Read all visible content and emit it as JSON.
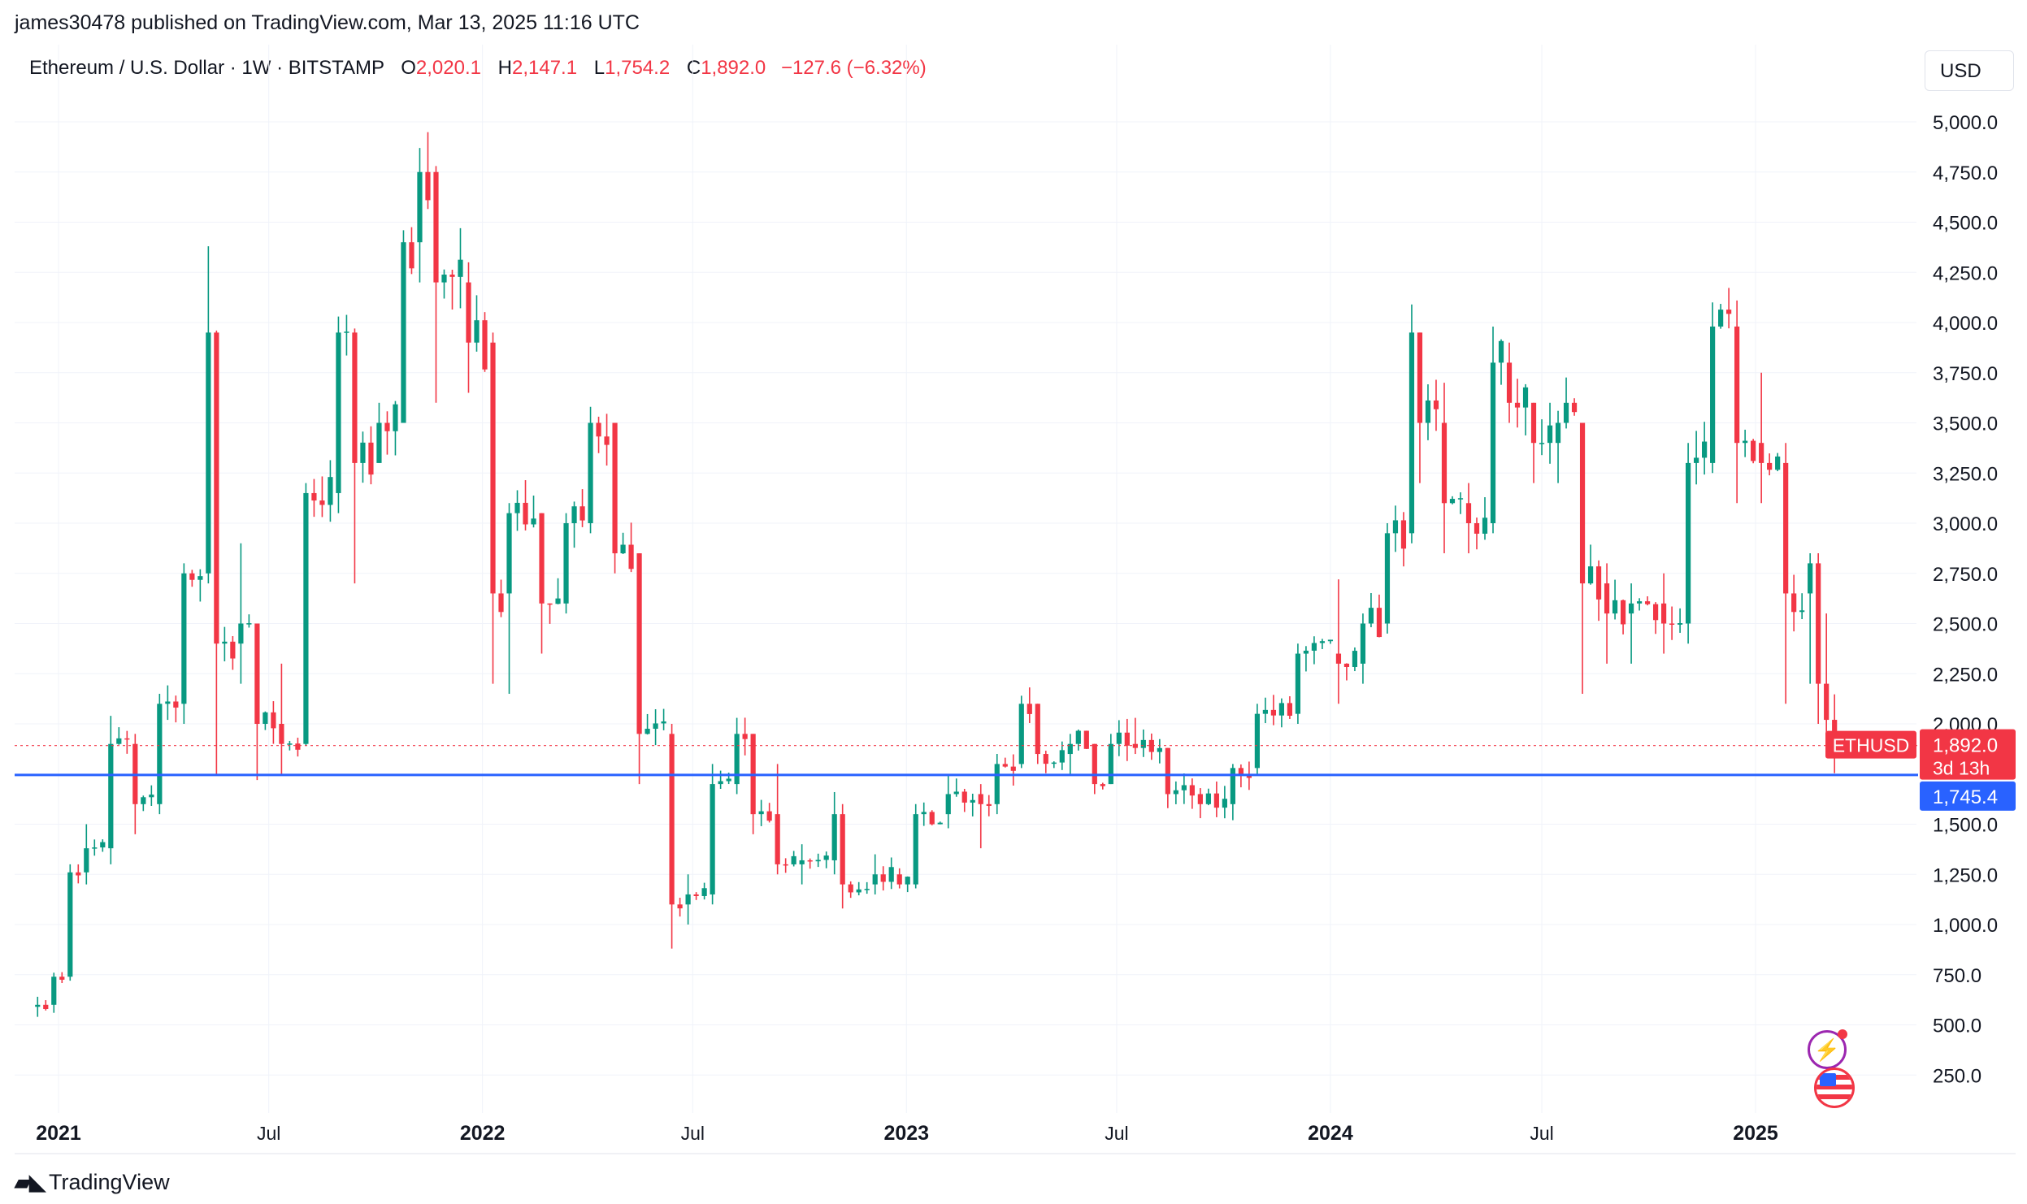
{
  "publisher_line": "james30478 published on TradingView.com, Mar 13, 2025 11:16 UTC",
  "legend": {
    "symbol": "Ethereum / U.S. Dollar · 1W · BITSTAMP",
    "open_label": "O",
    "open": "2,020.1",
    "high_label": "H",
    "high": "2,147.1",
    "low_label": "L",
    "low": "1,754.2",
    "close_label": "C",
    "close": "1,892.0",
    "change": "−127.6 (−6.32%)"
  },
  "currency": "USD",
  "footer_brand": "TradingView",
  "price_tag": {
    "ticker": "ETHUSD",
    "price": "1,892.0",
    "countdown": "3d 13h"
  },
  "level_tag": {
    "price": "1,745.4"
  },
  "colors": {
    "up": "#089981",
    "down": "#f23645",
    "level_line": "#2962ff",
    "grid": "#f0f3fa"
  },
  "chart_data": {
    "type": "candlestick",
    "interval": "1W",
    "y_ticks": [
      250,
      500,
      750,
      1000,
      1250,
      1500,
      2000,
      2250,
      2500,
      2750,
      3000,
      3250,
      3500,
      3750,
      4000,
      4250,
      4500,
      4750,
      5000
    ],
    "y_tick_labels": [
      "250.0",
      "500.0",
      "750.0",
      "1,000.0",
      "1,250.0",
      "1,500.0",
      "2,000.0",
      "2,250.0",
      "2,500.0",
      "2,750.0",
      "3,000.0",
      "3,250.0",
      "3,500.0",
      "3,750.0",
      "4,000.0",
      "4,250.0",
      "4,500.0",
      "4,750.0",
      "5,000.0"
    ],
    "x_ticks": [
      {
        "date": "2021-01-01",
        "label": "2021",
        "major": true
      },
      {
        "date": "2021-07-01",
        "label": "Jul",
        "major": false
      },
      {
        "date": "2022-01-01",
        "label": "2022",
        "major": true
      },
      {
        "date": "2022-07-01",
        "label": "Jul",
        "major": false
      },
      {
        "date": "2023-01-01",
        "label": "2023",
        "major": true
      },
      {
        "date": "2023-07-01",
        "label": "Jul",
        "major": false
      },
      {
        "date": "2024-01-01",
        "label": "2024",
        "major": true
      },
      {
        "date": "2024-07-01",
        "label": "Jul",
        "major": false
      },
      {
        "date": "2025-01-01",
        "label": "2025",
        "major": true
      }
    ],
    "horizontal_level": 1745.4,
    "last_close": 1892.0,
    "ohlc_anchors": [
      {
        "date": "2020-12-14",
        "open": 590,
        "high": 640,
        "low": 540,
        "close": 600
      },
      {
        "date": "2020-12-28",
        "open": 600,
        "high": 760,
        "low": 560,
        "close": 740
      },
      {
        "date": "2021-01-11",
        "open": 740,
        "high": 1300,
        "low": 720,
        "close": 1260
      },
      {
        "date": "2021-01-25",
        "open": 1260,
        "high": 1500,
        "low": 1200,
        "close": 1380
      },
      {
        "date": "2021-02-15",
        "open": 1380,
        "high": 2040,
        "low": 1300,
        "close": 1900
      },
      {
        "date": "2021-03-08",
        "open": 1900,
        "high": 1950,
        "low": 1450,
        "close": 1600
      },
      {
        "date": "2021-03-29",
        "open": 1600,
        "high": 2150,
        "low": 1550,
        "close": 2100
      },
      {
        "date": "2021-04-19",
        "open": 2100,
        "high": 2800,
        "low": 2000,
        "close": 2750
      },
      {
        "date": "2021-05-10",
        "open": 2750,
        "high": 4380,
        "low": 2700,
        "close": 3950
      },
      {
        "date": "2021-05-17",
        "open": 3950,
        "high": 3960,
        "low": 1750,
        "close": 2400
      },
      {
        "date": "2021-06-07",
        "open": 2400,
        "high": 2900,
        "low": 2200,
        "close": 2500
      },
      {
        "date": "2021-06-21",
        "open": 2500,
        "high": 2500,
        "low": 1720,
        "close": 2000
      },
      {
        "date": "2021-07-12",
        "open": 2000,
        "high": 2300,
        "low": 1750,
        "close": 1900
      },
      {
        "date": "2021-08-02",
        "open": 1900,
        "high": 3200,
        "low": 1890,
        "close": 3150
      },
      {
        "date": "2021-08-30",
        "open": 3150,
        "high": 4030,
        "low": 3050,
        "close": 3950
      },
      {
        "date": "2021-09-13",
        "open": 3950,
        "high": 3970,
        "low": 2700,
        "close": 3300
      },
      {
        "date": "2021-10-04",
        "open": 3300,
        "high": 3600,
        "low": 3300,
        "close": 3500
      },
      {
        "date": "2021-10-25",
        "open": 3500,
        "high": 4460,
        "low": 3500,
        "close": 4400
      },
      {
        "date": "2021-11-08",
        "open": 4400,
        "high": 4870,
        "low": 4200,
        "close": 4750
      },
      {
        "date": "2021-11-22",
        "open": 4750,
        "high": 4780,
        "low": 3600,
        "close": 4200
      },
      {
        "date": "2021-12-20",
        "open": 4200,
        "high": 4300,
        "low": 3650,
        "close": 3900
      },
      {
        "date": "2022-01-10",
        "open": 3900,
        "high": 3950,
        "low": 2200,
        "close": 2650
      },
      {
        "date": "2022-01-24",
        "open": 2650,
        "high": 3100,
        "low": 2150,
        "close": 3050
      },
      {
        "date": "2022-02-21",
        "open": 3050,
        "high": 3050,
        "low": 2350,
        "close": 2600
      },
      {
        "date": "2022-03-14",
        "open": 2600,
        "high": 3050,
        "low": 2550,
        "close": 3000
      },
      {
        "date": "2022-04-04",
        "open": 3000,
        "high": 3580,
        "low": 2950,
        "close": 3500
      },
      {
        "date": "2022-04-25",
        "open": 3500,
        "high": 3500,
        "low": 2750,
        "close": 2850
      },
      {
        "date": "2022-05-16",
        "open": 2850,
        "high": 2850,
        "low": 1700,
        "close": 1950
      },
      {
        "date": "2022-06-13",
        "open": 1950,
        "high": 2000,
        "low": 880,
        "close": 1100
      },
      {
        "date": "2022-06-27",
        "open": 1100,
        "high": 1250,
        "low": 1000,
        "close": 1150
      },
      {
        "date": "2022-07-18",
        "open": 1150,
        "high": 1800,
        "low": 1100,
        "close": 1700
      },
      {
        "date": "2022-08-08",
        "open": 1700,
        "high": 2030,
        "low": 1650,
        "close": 1950
      },
      {
        "date": "2022-08-22",
        "open": 1950,
        "high": 1950,
        "low": 1450,
        "close": 1550
      },
      {
        "date": "2022-09-12",
        "open": 1550,
        "high": 1800,
        "low": 1250,
        "close": 1300
      },
      {
        "date": "2022-10-03",
        "open": 1300,
        "high": 1400,
        "low": 1200,
        "close": 1320
      },
      {
        "date": "2022-10-31",
        "open": 1320,
        "high": 1660,
        "low": 1250,
        "close": 1550
      },
      {
        "date": "2022-11-07",
        "open": 1550,
        "high": 1600,
        "low": 1080,
        "close": 1200
      },
      {
        "date": "2022-12-05",
        "open": 1200,
        "high": 1350,
        "low": 1150,
        "close": 1250
      },
      {
        "date": "2022-12-26",
        "open": 1250,
        "high": 1280,
        "low": 1180,
        "close": 1200
      },
      {
        "date": "2023-01-09",
        "open": 1200,
        "high": 1600,
        "low": 1180,
        "close": 1550
      },
      {
        "date": "2023-02-06",
        "open": 1550,
        "high": 1750,
        "low": 1480,
        "close": 1650
      },
      {
        "date": "2023-03-06",
        "open": 1650,
        "high": 1700,
        "low": 1380,
        "close": 1600
      },
      {
        "date": "2023-03-20",
        "open": 1600,
        "high": 1850,
        "low": 1550,
        "close": 1800
      },
      {
        "date": "2023-04-10",
        "open": 1800,
        "high": 2140,
        "low": 1780,
        "close": 2100
      },
      {
        "date": "2023-04-24",
        "open": 2100,
        "high": 2100,
        "low": 1800,
        "close": 1850
      },
      {
        "date": "2023-05-22",
        "open": 1850,
        "high": 1950,
        "low": 1750,
        "close": 1900
      },
      {
        "date": "2023-06-12",
        "open": 1900,
        "high": 1900,
        "low": 1650,
        "close": 1700
      },
      {
        "date": "2023-06-26",
        "open": 1700,
        "high": 1950,
        "low": 1700,
        "close": 1900
      },
      {
        "date": "2023-07-17",
        "open": 1900,
        "high": 2030,
        "low": 1850,
        "close": 1880
      },
      {
        "date": "2023-08-14",
        "open": 1880,
        "high": 1880,
        "low": 1580,
        "close": 1650
      },
      {
        "date": "2023-09-11",
        "open": 1650,
        "high": 1680,
        "low": 1530,
        "close": 1600
      },
      {
        "date": "2023-10-09",
        "open": 1600,
        "high": 1800,
        "low": 1520,
        "close": 1780
      },
      {
        "date": "2023-10-30",
        "open": 1780,
        "high": 2100,
        "low": 1750,
        "close": 2050
      },
      {
        "date": "2023-12-04",
        "open": 2050,
        "high": 2400,
        "low": 2000,
        "close": 2350
      },
      {
        "date": "2024-01-08",
        "open": 2350,
        "high": 2720,
        "low": 2100,
        "close": 2300
      },
      {
        "date": "2024-01-29",
        "open": 2300,
        "high": 2550,
        "low": 2200,
        "close": 2500
      },
      {
        "date": "2024-02-19",
        "open": 2500,
        "high": 3000,
        "low": 2450,
        "close": 2950
      },
      {
        "date": "2024-03-11",
        "open": 2950,
        "high": 4090,
        "low": 2900,
        "close": 3950
      },
      {
        "date": "2024-03-18",
        "open": 3950,
        "high": 3950,
        "low": 3200,
        "close": 3500
      },
      {
        "date": "2024-04-08",
        "open": 3500,
        "high": 3700,
        "low": 2850,
        "close": 3100
      },
      {
        "date": "2024-04-29",
        "open": 3100,
        "high": 3200,
        "low": 2850,
        "close": 3000
      },
      {
        "date": "2024-05-20",
        "open": 3000,
        "high": 3980,
        "low": 2950,
        "close": 3800
      },
      {
        "date": "2024-06-03",
        "open": 3800,
        "high": 3900,
        "low": 3500,
        "close": 3600
      },
      {
        "date": "2024-06-24",
        "open": 3600,
        "high": 3600,
        "low": 3200,
        "close": 3400
      },
      {
        "date": "2024-07-15",
        "open": 3400,
        "high": 3560,
        "low": 3200,
        "close": 3500
      },
      {
        "date": "2024-08-05",
        "open": 3500,
        "high": 3500,
        "low": 2150,
        "close": 2700
      },
      {
        "date": "2024-08-26",
        "open": 2700,
        "high": 2800,
        "low": 2300,
        "close": 2550
      },
      {
        "date": "2024-09-16",
        "open": 2550,
        "high": 2700,
        "low": 2300,
        "close": 2600
      },
      {
        "date": "2024-10-14",
        "open": 2600,
        "high": 2750,
        "low": 2350,
        "close": 2500
      },
      {
        "date": "2024-11-04",
        "open": 2500,
        "high": 3400,
        "low": 2400,
        "close": 3300
      },
      {
        "date": "2024-11-25",
        "open": 3300,
        "high": 4100,
        "low": 3250,
        "close": 3980
      },
      {
        "date": "2024-12-16",
        "open": 3980,
        "high": 4110,
        "low": 3100,
        "close": 3400
      },
      {
        "date": "2025-01-06",
        "open": 3400,
        "high": 3750,
        "low": 3100,
        "close": 3300
      },
      {
        "date": "2025-01-27",
        "open": 3300,
        "high": 3400,
        "low": 2100,
        "close": 2650
      },
      {
        "date": "2025-02-17",
        "open": 2650,
        "high": 2850,
        "low": 2200,
        "close": 2800
      },
      {
        "date": "2025-02-24",
        "open": 2800,
        "high": 2850,
        "low": 2000,
        "close": 2200
      },
      {
        "date": "2025-03-03",
        "open": 2200,
        "high": 2550,
        "low": 1950,
        "close": 2020
      },
      {
        "date": "2025-03-10",
        "open": 2020.1,
        "high": 2147.1,
        "low": 1754.2,
        "close": 1892.0
      }
    ]
  }
}
